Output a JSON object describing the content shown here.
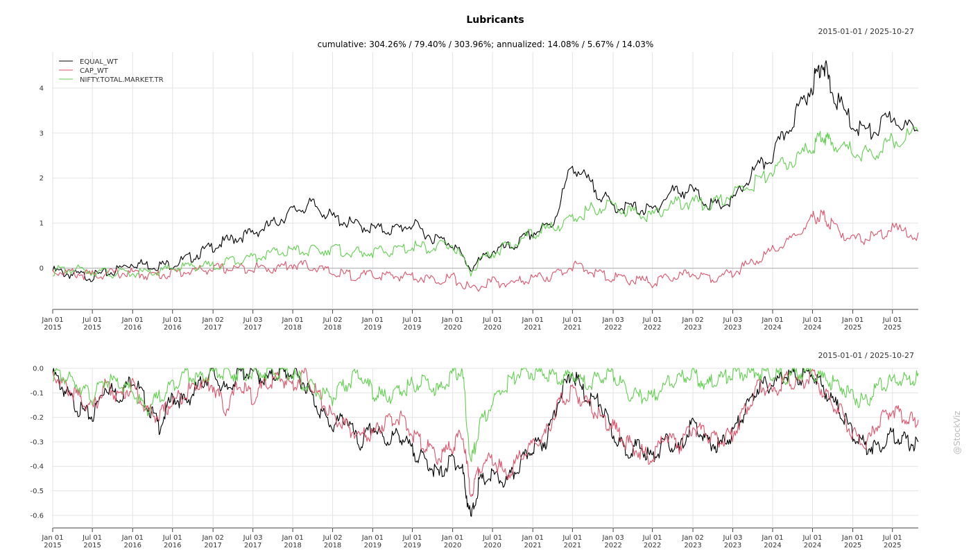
{
  "title": "Lubricants",
  "subtitle": "cumulative: 304.26% / 79.40% / 303.96%; annualized: 14.08% / 5.67% / 14.03%",
  "watermark": "@StockViz",
  "colors": {
    "EQUAL_WT": "#000000",
    "CAP_WT": "#DF536B",
    "NIFTY.TOTAL.MARKET.TR": "#61D04F"
  },
  "chart_data": [
    {
      "type": "line",
      "date_range": "2015-01-01 / 2025-10-27",
      "grid": true,
      "legend_position": "top-left",
      "x_ticks": [
        "Jan 01 2015",
        "Jul 01 2015",
        "Jan 01 2016",
        "Jul 01 2016",
        "Jan 02 2017",
        "Jul 03 2017",
        "Jan 01 2018",
        "Jul 02 2018",
        "Jan 01 2019",
        "Jul 01 2019",
        "Jan 01 2020",
        "Jul 01 2020",
        "Jan 01 2021",
        "Jul 01 2021",
        "Jan 03 2022",
        "Jul 01 2022",
        "Jan 02 2023",
        "Jul 03 2023",
        "Jan 01 2024",
        "Jul 01 2024",
        "Jan 01 2025",
        "Jul 01 2025"
      ],
      "y_ticks": [
        0,
        1,
        2,
        3,
        4
      ],
      "ylim": [
        -0.7,
        4.8
      ],
      "x": [
        "2015-01-01",
        "2015-04-01",
        "2015-07-01",
        "2015-10-01",
        "2016-01-01",
        "2016-04-01",
        "2016-07-01",
        "2016-10-01",
        "2017-01-01",
        "2017-04-01",
        "2017-07-01",
        "2017-10-01",
        "2018-01-01",
        "2018-04-01",
        "2018-07-01",
        "2018-10-01",
        "2019-01-01",
        "2019-04-01",
        "2019-07-01",
        "2019-10-01",
        "2020-01-01",
        "2020-03-24",
        "2020-07-01",
        "2020-10-01",
        "2021-01-01",
        "2021-04-01",
        "2021-07-01",
        "2021-10-01",
        "2022-01-01",
        "2022-04-01",
        "2022-07-01",
        "2022-10-01",
        "2023-01-01",
        "2023-04-01",
        "2023-07-01",
        "2023-10-01",
        "2024-01-01",
        "2024-04-01",
        "2024-07-01",
        "2024-08-15",
        "2024-10-01",
        "2025-01-01",
        "2025-04-01",
        "2025-07-01",
        "2025-10-27"
      ],
      "series": [
        {
          "name": "EQUAL_WT",
          "values": [
            0.0,
            -0.08,
            -0.12,
            -0.02,
            0.18,
            0.12,
            0.15,
            0.32,
            0.55,
            0.72,
            0.85,
            1.05,
            1.35,
            1.5,
            1.2,
            1.05,
            0.95,
            0.92,
            1.05,
            0.75,
            0.62,
            0.05,
            0.45,
            0.55,
            0.85,
            1.05,
            2.4,
            1.9,
            1.45,
            1.42,
            1.35,
            1.8,
            1.8,
            1.45,
            1.55,
            2.2,
            2.6,
            3.4,
            4.2,
            4.75,
            4.0,
            3.3,
            3.1,
            3.5,
            3.04
          ]
        },
        {
          "name": "CAP_WT",
          "values": [
            0.0,
            -0.05,
            -0.1,
            -0.05,
            -0.05,
            -0.1,
            -0.05,
            0.0,
            0.05,
            0.05,
            0.08,
            0.05,
            0.15,
            0.1,
            -0.05,
            -0.1,
            -0.1,
            -0.12,
            -0.1,
            -0.2,
            -0.15,
            -0.4,
            -0.25,
            -0.28,
            -0.15,
            -0.12,
            0.12,
            -0.02,
            -0.15,
            -0.2,
            -0.25,
            -0.15,
            -0.05,
            -0.15,
            -0.05,
            0.2,
            0.45,
            0.7,
            1.2,
            1.25,
            1.0,
            0.7,
            0.75,
            0.95,
            0.79
          ]
        },
        {
          "name": "NIFTY.TOTAL.MARKET.TR",
          "values": [
            0.0,
            0.03,
            0.0,
            -0.05,
            -0.05,
            -0.05,
            0.05,
            0.12,
            0.1,
            0.25,
            0.3,
            0.4,
            0.45,
            0.45,
            0.5,
            0.4,
            0.42,
            0.45,
            0.55,
            0.52,
            0.6,
            0.0,
            0.4,
            0.6,
            0.85,
            0.98,
            1.15,
            1.4,
            1.5,
            1.3,
            1.25,
            1.5,
            1.55,
            1.5,
            1.75,
            1.95,
            2.25,
            2.5,
            2.8,
            3.05,
            2.9,
            2.7,
            2.6,
            2.95,
            3.04
          ]
        }
      ]
    },
    {
      "type": "line",
      "date_range": "2015-01-01 / 2025-10-27",
      "grid": true,
      "x_ticks": [
        "Jan 01 2015",
        "Jul 01 2015",
        "Jan 01 2016",
        "Jul 01 2016",
        "Jan 02 2017",
        "Jul 03 2017",
        "Jan 01 2018",
        "Jul 02 2018",
        "Jan 01 2019",
        "Jul 01 2019",
        "Jan 01 2020",
        "Jul 01 2020",
        "Jan 01 2021",
        "Jul 01 2021",
        "Jan 03 2022",
        "Jul 01 2022",
        "Jan 02 2023",
        "Jul 03 2023",
        "Jan 01 2024",
        "Jul 01 2024",
        "Jan 01 2025",
        "Jul 01 2025"
      ],
      "y_ticks": [
        "0.0",
        "-0.1",
        "-0.2",
        "-0.3",
        "-0.4",
        "-0.5",
        "-0.6"
      ],
      "ylim": [
        -0.65,
        0.0
      ],
      "x": [
        "2015-01-01",
        "2015-03-01",
        "2015-05-01",
        "2015-07-01",
        "2015-09-01",
        "2015-11-01",
        "2016-01-01",
        "2016-03-01",
        "2016-05-01",
        "2016-07-01",
        "2016-09-01",
        "2016-11-01",
        "2017-01-01",
        "2017-03-01",
        "2017-05-01",
        "2017-07-01",
        "2017-09-01",
        "2017-11-01",
        "2018-01-01",
        "2018-03-01",
        "2018-05-01",
        "2018-07-01",
        "2018-09-01",
        "2018-11-01",
        "2019-01-01",
        "2019-03-01",
        "2019-05-01",
        "2019-07-01",
        "2019-09-01",
        "2019-11-01",
        "2020-01-01",
        "2020-02-15",
        "2020-03-24",
        "2020-05-01",
        "2020-07-01",
        "2020-09-01",
        "2020-11-01",
        "2021-01-01",
        "2021-03-01",
        "2021-05-01",
        "2021-07-01",
        "2021-09-01",
        "2021-11-01",
        "2022-01-01",
        "2022-03-01",
        "2022-05-01",
        "2022-07-01",
        "2022-09-01",
        "2022-11-01",
        "2023-01-01",
        "2023-03-01",
        "2023-05-01",
        "2023-07-01",
        "2023-09-01",
        "2023-11-01",
        "2024-01-01",
        "2024-03-01",
        "2024-05-01",
        "2024-07-01",
        "2024-09-01",
        "2024-11-01",
        "2025-01-01",
        "2025-03-01",
        "2025-05-01",
        "2025-07-01",
        "2025-09-01",
        "2025-10-27"
      ],
      "series": [
        {
          "name": "EQUAL_WT",
          "values": [
            0.0,
            -0.08,
            -0.15,
            -0.18,
            -0.05,
            -0.1,
            -0.02,
            -0.12,
            -0.22,
            -0.1,
            -0.12,
            -0.05,
            0.0,
            -0.08,
            0.0,
            0.0,
            -0.03,
            0.0,
            0.0,
            -0.05,
            -0.15,
            -0.22,
            -0.18,
            -0.3,
            -0.22,
            -0.28,
            -0.25,
            -0.32,
            -0.36,
            -0.42,
            -0.35,
            -0.4,
            -0.6,
            -0.45,
            -0.42,
            -0.45,
            -0.38,
            -0.3,
            -0.28,
            -0.1,
            0.0,
            -0.1,
            -0.12,
            -0.25,
            -0.32,
            -0.3,
            -0.35,
            -0.28,
            -0.32,
            -0.2,
            -0.28,
            -0.3,
            -0.25,
            -0.15,
            -0.05,
            -0.05,
            0.0,
            -0.02,
            0.0,
            -0.08,
            -0.15,
            -0.25,
            -0.3,
            -0.3,
            -0.25,
            -0.28,
            -0.3
          ]
        },
        {
          "name": "CAP_WT",
          "values": [
            0.0,
            -0.06,
            -0.1,
            -0.15,
            -0.05,
            -0.1,
            -0.05,
            -0.15,
            -0.18,
            -0.12,
            -0.08,
            -0.04,
            -0.05,
            -0.15,
            -0.05,
            -0.1,
            -0.05,
            -0.02,
            -0.05,
            0.0,
            -0.1,
            -0.18,
            -0.22,
            -0.26,
            -0.25,
            -0.2,
            -0.18,
            -0.25,
            -0.3,
            -0.35,
            -0.3,
            -0.25,
            -0.5,
            -0.38,
            -0.35,
            -0.42,
            -0.35,
            -0.3,
            -0.25,
            -0.12,
            -0.08,
            -0.12,
            -0.18,
            -0.22,
            -0.28,
            -0.32,
            -0.35,
            -0.25,
            -0.3,
            -0.22,
            -0.25,
            -0.28,
            -0.25,
            -0.15,
            -0.05,
            -0.08,
            -0.02,
            -0.05,
            0.0,
            -0.1,
            -0.15,
            -0.25,
            -0.3,
            -0.2,
            -0.15,
            -0.18,
            -0.21
          ]
        },
        {
          "name": "NIFTY.TOTAL.MARKET.TR",
          "values": [
            0.0,
            -0.02,
            -0.05,
            -0.1,
            -0.03,
            -0.05,
            -0.08,
            -0.15,
            -0.1,
            -0.05,
            0.0,
            -0.03,
            0.0,
            0.0,
            0.0,
            0.0,
            0.0,
            0.0,
            0.0,
            -0.05,
            -0.08,
            -0.1,
            -0.05,
            0.0,
            -0.08,
            -0.1,
            -0.08,
            -0.05,
            -0.03,
            -0.08,
            0.0,
            0.0,
            -0.38,
            -0.22,
            -0.12,
            -0.05,
            0.0,
            0.0,
            0.0,
            -0.03,
            0.0,
            -0.05,
            -0.02,
            0.0,
            -0.08,
            -0.1,
            -0.1,
            -0.05,
            -0.02,
            0.0,
            -0.05,
            -0.03,
            0.0,
            0.0,
            0.0,
            0.0,
            -0.02,
            0.0,
            0.0,
            -0.03,
            -0.05,
            -0.1,
            -0.12,
            -0.05,
            -0.04,
            -0.03,
            -0.02
          ]
        }
      ]
    }
  ]
}
